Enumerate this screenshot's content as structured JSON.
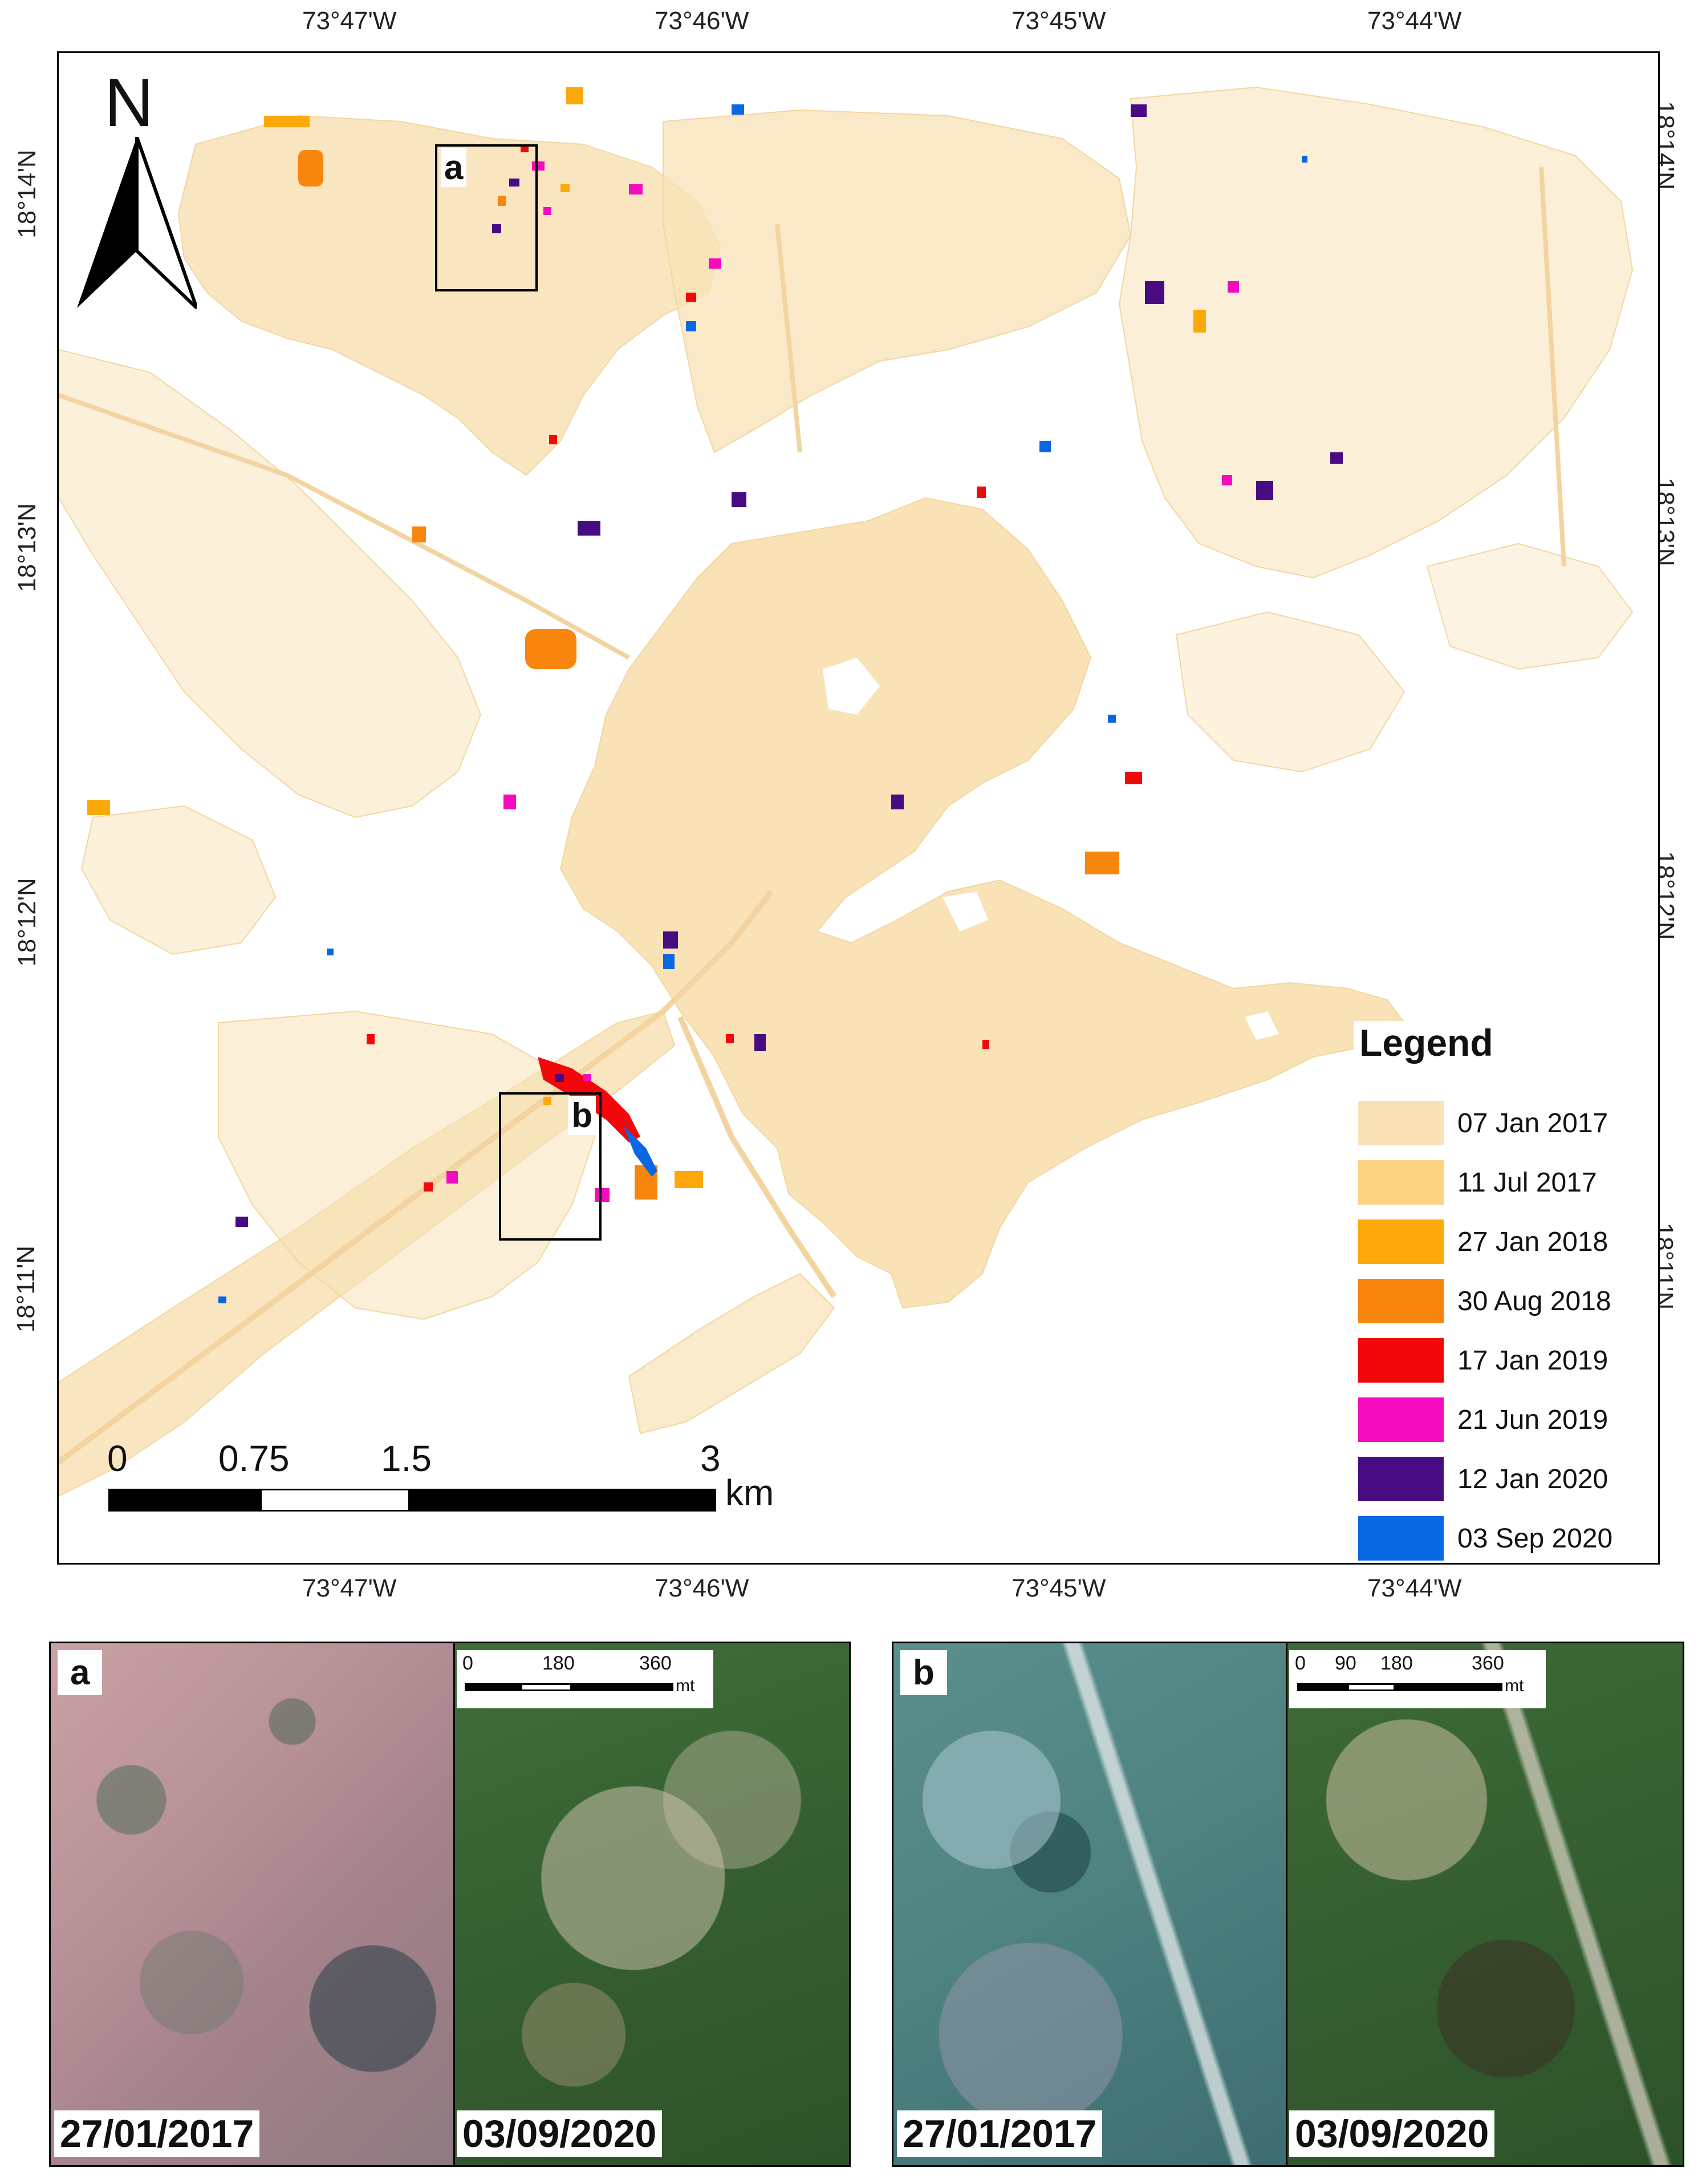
{
  "top_lon_labels": [
    "73°47'W",
    "73°46'W",
    "73°45'W",
    "73°44'W"
  ],
  "bottom_lon_labels": [
    "73°47'W",
    "73°46'W",
    "73°45'W",
    "73°44'W"
  ],
  "left_lat_labels": [
    "18°14'N",
    "18°13'N",
    "18°12'N",
    "18°11'N"
  ],
  "right_lat_labels": [
    "18°14'N",
    "18°13'N",
    "18°12'N",
    "18°11'N"
  ],
  "north_arrow": {
    "label": "N",
    "icon": "north-arrow-icon"
  },
  "inset_markers": [
    {
      "id": "a",
      "label": "a"
    },
    {
      "id": "b",
      "label": "b"
    }
  ],
  "legend": {
    "title": "Legend",
    "items": [
      {
        "label": "07 Jan 2017",
        "color": "#F8E2B6"
      },
      {
        "label": "11 Jul 2017",
        "color": "#FCD283"
      },
      {
        "label": "27 Jan 2018",
        "color": "#FCA80A"
      },
      {
        "label": "30 Aug 2018",
        "color": "#F8860E"
      },
      {
        "label": "17 Jan 2019",
        "color": "#F2070A"
      },
      {
        "label": "21 Jun 2019",
        "color": "#F20CBE"
      },
      {
        "label": "12 Jan 2020",
        "color": "#480C82"
      },
      {
        "label": "03 Sep 2020",
        "color": "#0A67E4"
      }
    ]
  },
  "scale_bar": {
    "labels": [
      "0",
      "0.75",
      "1.5",
      "3"
    ],
    "unit": "km"
  },
  "panels": [
    {
      "id": "a",
      "letter": "a",
      "left_date": "27/01/2017",
      "right_date": "03/09/2020",
      "scale_labels": [
        "0",
        "180",
        "360"
      ],
      "scale_unit": "mt"
    },
    {
      "id": "b",
      "letter": "b",
      "left_date": "27/01/2017",
      "right_date": "03/09/2020",
      "scale_labels": [
        "0",
        "90",
        "180",
        "360"
      ],
      "scale_unit": "mt"
    }
  ]
}
